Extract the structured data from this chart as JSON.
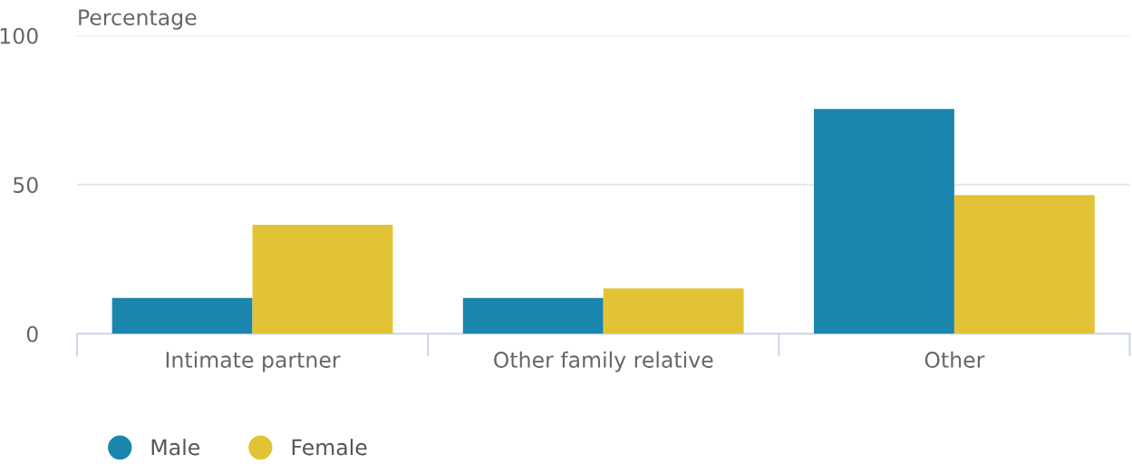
{
  "chart_data": {
    "type": "bar",
    "ylabel": "Percentage",
    "categories": [
      "Intimate partner",
      "Other family relative",
      "Other"
    ],
    "series": [
      {
        "name": "Male",
        "color": "#1a85ad",
        "values": [
          12,
          12,
          75.4
        ]
      },
      {
        "name": "Female",
        "color": "#e2c335",
        "values": [
          36.5,
          15.2,
          46.5
        ]
      }
    ],
    "ylim": [
      0,
      100
    ],
    "yticks": [
      0,
      50,
      100
    ],
    "grid": "y",
    "legend": "bottom left"
  }
}
